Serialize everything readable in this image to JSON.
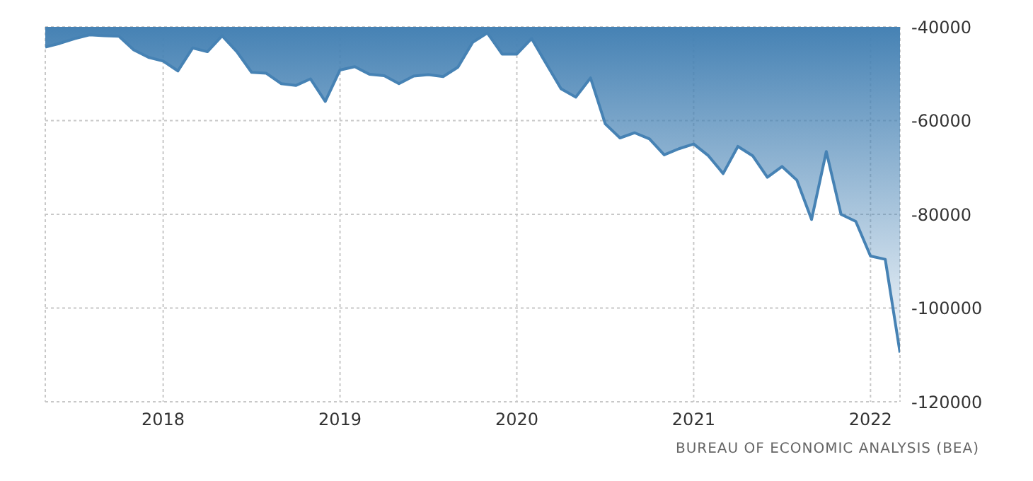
{
  "chart_data": {
    "type": "area",
    "x": [
      "2017-05",
      "2017-06",
      "2017-07",
      "2017-08",
      "2017-09",
      "2017-10",
      "2017-11",
      "2017-12",
      "2018-01",
      "2018-02",
      "2018-03",
      "2018-04",
      "2018-05",
      "2018-06",
      "2018-07",
      "2018-08",
      "2018-09",
      "2018-10",
      "2018-11",
      "2018-12",
      "2019-01",
      "2019-02",
      "2019-03",
      "2019-04",
      "2019-05",
      "2019-06",
      "2019-07",
      "2019-08",
      "2019-09",
      "2019-10",
      "2019-11",
      "2019-12",
      "2020-01",
      "2020-02",
      "2020-03",
      "2020-04",
      "2020-05",
      "2020-06",
      "2020-07",
      "2020-08",
      "2020-09",
      "2020-10",
      "2020-11",
      "2020-12",
      "2021-01",
      "2021-02",
      "2021-03",
      "2021-04",
      "2021-05",
      "2021-06",
      "2021-07",
      "2021-08",
      "2021-09",
      "2021-10",
      "2021-11",
      "2021-12",
      "2022-01",
      "2022-02",
      "2022-03"
    ],
    "series": [
      {
        "color": "#4682b4",
        "values": [
          -44300,
          -43500,
          -42500,
          -41700,
          -41900,
          -42000,
          -44900,
          -46500,
          -47300,
          -49400,
          -44500,
          -45300,
          -41900,
          -45300,
          -49700,
          -49900,
          -52100,
          -52500,
          -51100,
          -55900,
          -49200,
          -48500,
          -50100,
          -50400,
          -52100,
          -50500,
          -50200,
          -50600,
          -48600,
          -43300,
          -41300,
          -45800,
          -45800,
          -42500,
          -47900,
          -53200,
          -55000,
          -50900,
          -60700,
          -63700,
          -62600,
          -63900,
          -67300,
          -66000,
          -65000,
          -67500,
          -71300,
          -65500,
          -67500,
          -72100,
          -69800,
          -72700,
          -81100,
          -66600,
          -80000,
          -81500,
          -88900,
          -89600,
          -109500
        ]
      }
    ],
    "xlim": [
      "2017-05",
      "2022-03"
    ],
    "xticks": [
      "2018",
      "2019",
      "2020",
      "2021",
      "2022"
    ],
    "ylim": [
      -120000,
      -40000
    ],
    "yticks": [
      -120000,
      -100000,
      -80000,
      -60000,
      -40000
    ],
    "grid": true,
    "annotations": [
      "BUREAU OF ECONOMIC ANALYSIS (BEA)"
    ]
  }
}
